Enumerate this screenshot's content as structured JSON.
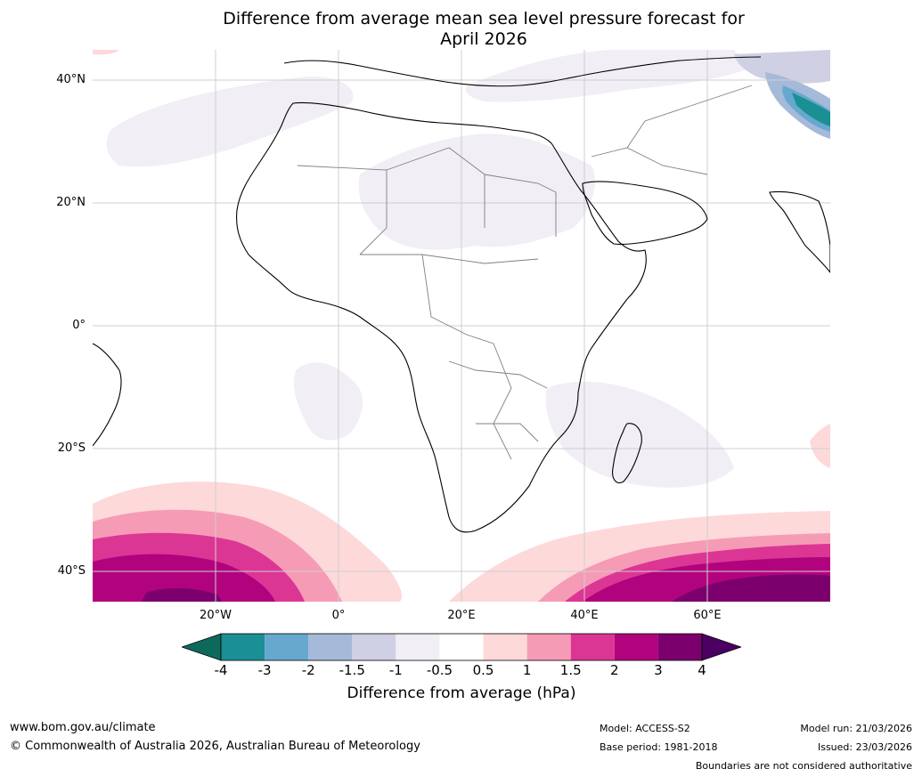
{
  "title_line1": "Difference from average mean sea level pressure forecast for",
  "title_line2": "April 2026",
  "lat_labels": [
    "40°N",
    "20°N",
    "0°",
    "20°S",
    "40°S"
  ],
  "lon_labels": [
    "20°W",
    "0°",
    "20°E",
    "40°E",
    "60°E"
  ],
  "colorbar": {
    "title": "Difference from average (hPa)",
    "ticks": [
      "-4",
      "-3",
      "-2",
      "-1.5",
      "-1",
      "-0.5",
      "0.5",
      "1",
      "1.5",
      "2",
      "3",
      "4"
    ],
    "colors": [
      "#1a8f94",
      "#67a8cf",
      "#a5bad8",
      "#d0d0e4",
      "#f2eef5",
      "#ffffff",
      "#fdd9da",
      "#f69bb6",
      "#dc3695",
      "#b1037e",
      "#7b006e"
    ],
    "low_color": "#0d6a5a",
    "high_color": "#4a0060"
  },
  "footer": {
    "url": "www.bom.gov.au/climate",
    "copyright": "© Commonwealth of Australia 2026, Australian Bureau of Meteorology",
    "model": "Model: ACCESS-S2",
    "base_period": "Base period: 1981-2018",
    "model_run": "Model run: 21/03/2026",
    "issued": "Issued: 23/03/2026",
    "disclaimer": "Boundaries are not considered authoritative"
  }
}
